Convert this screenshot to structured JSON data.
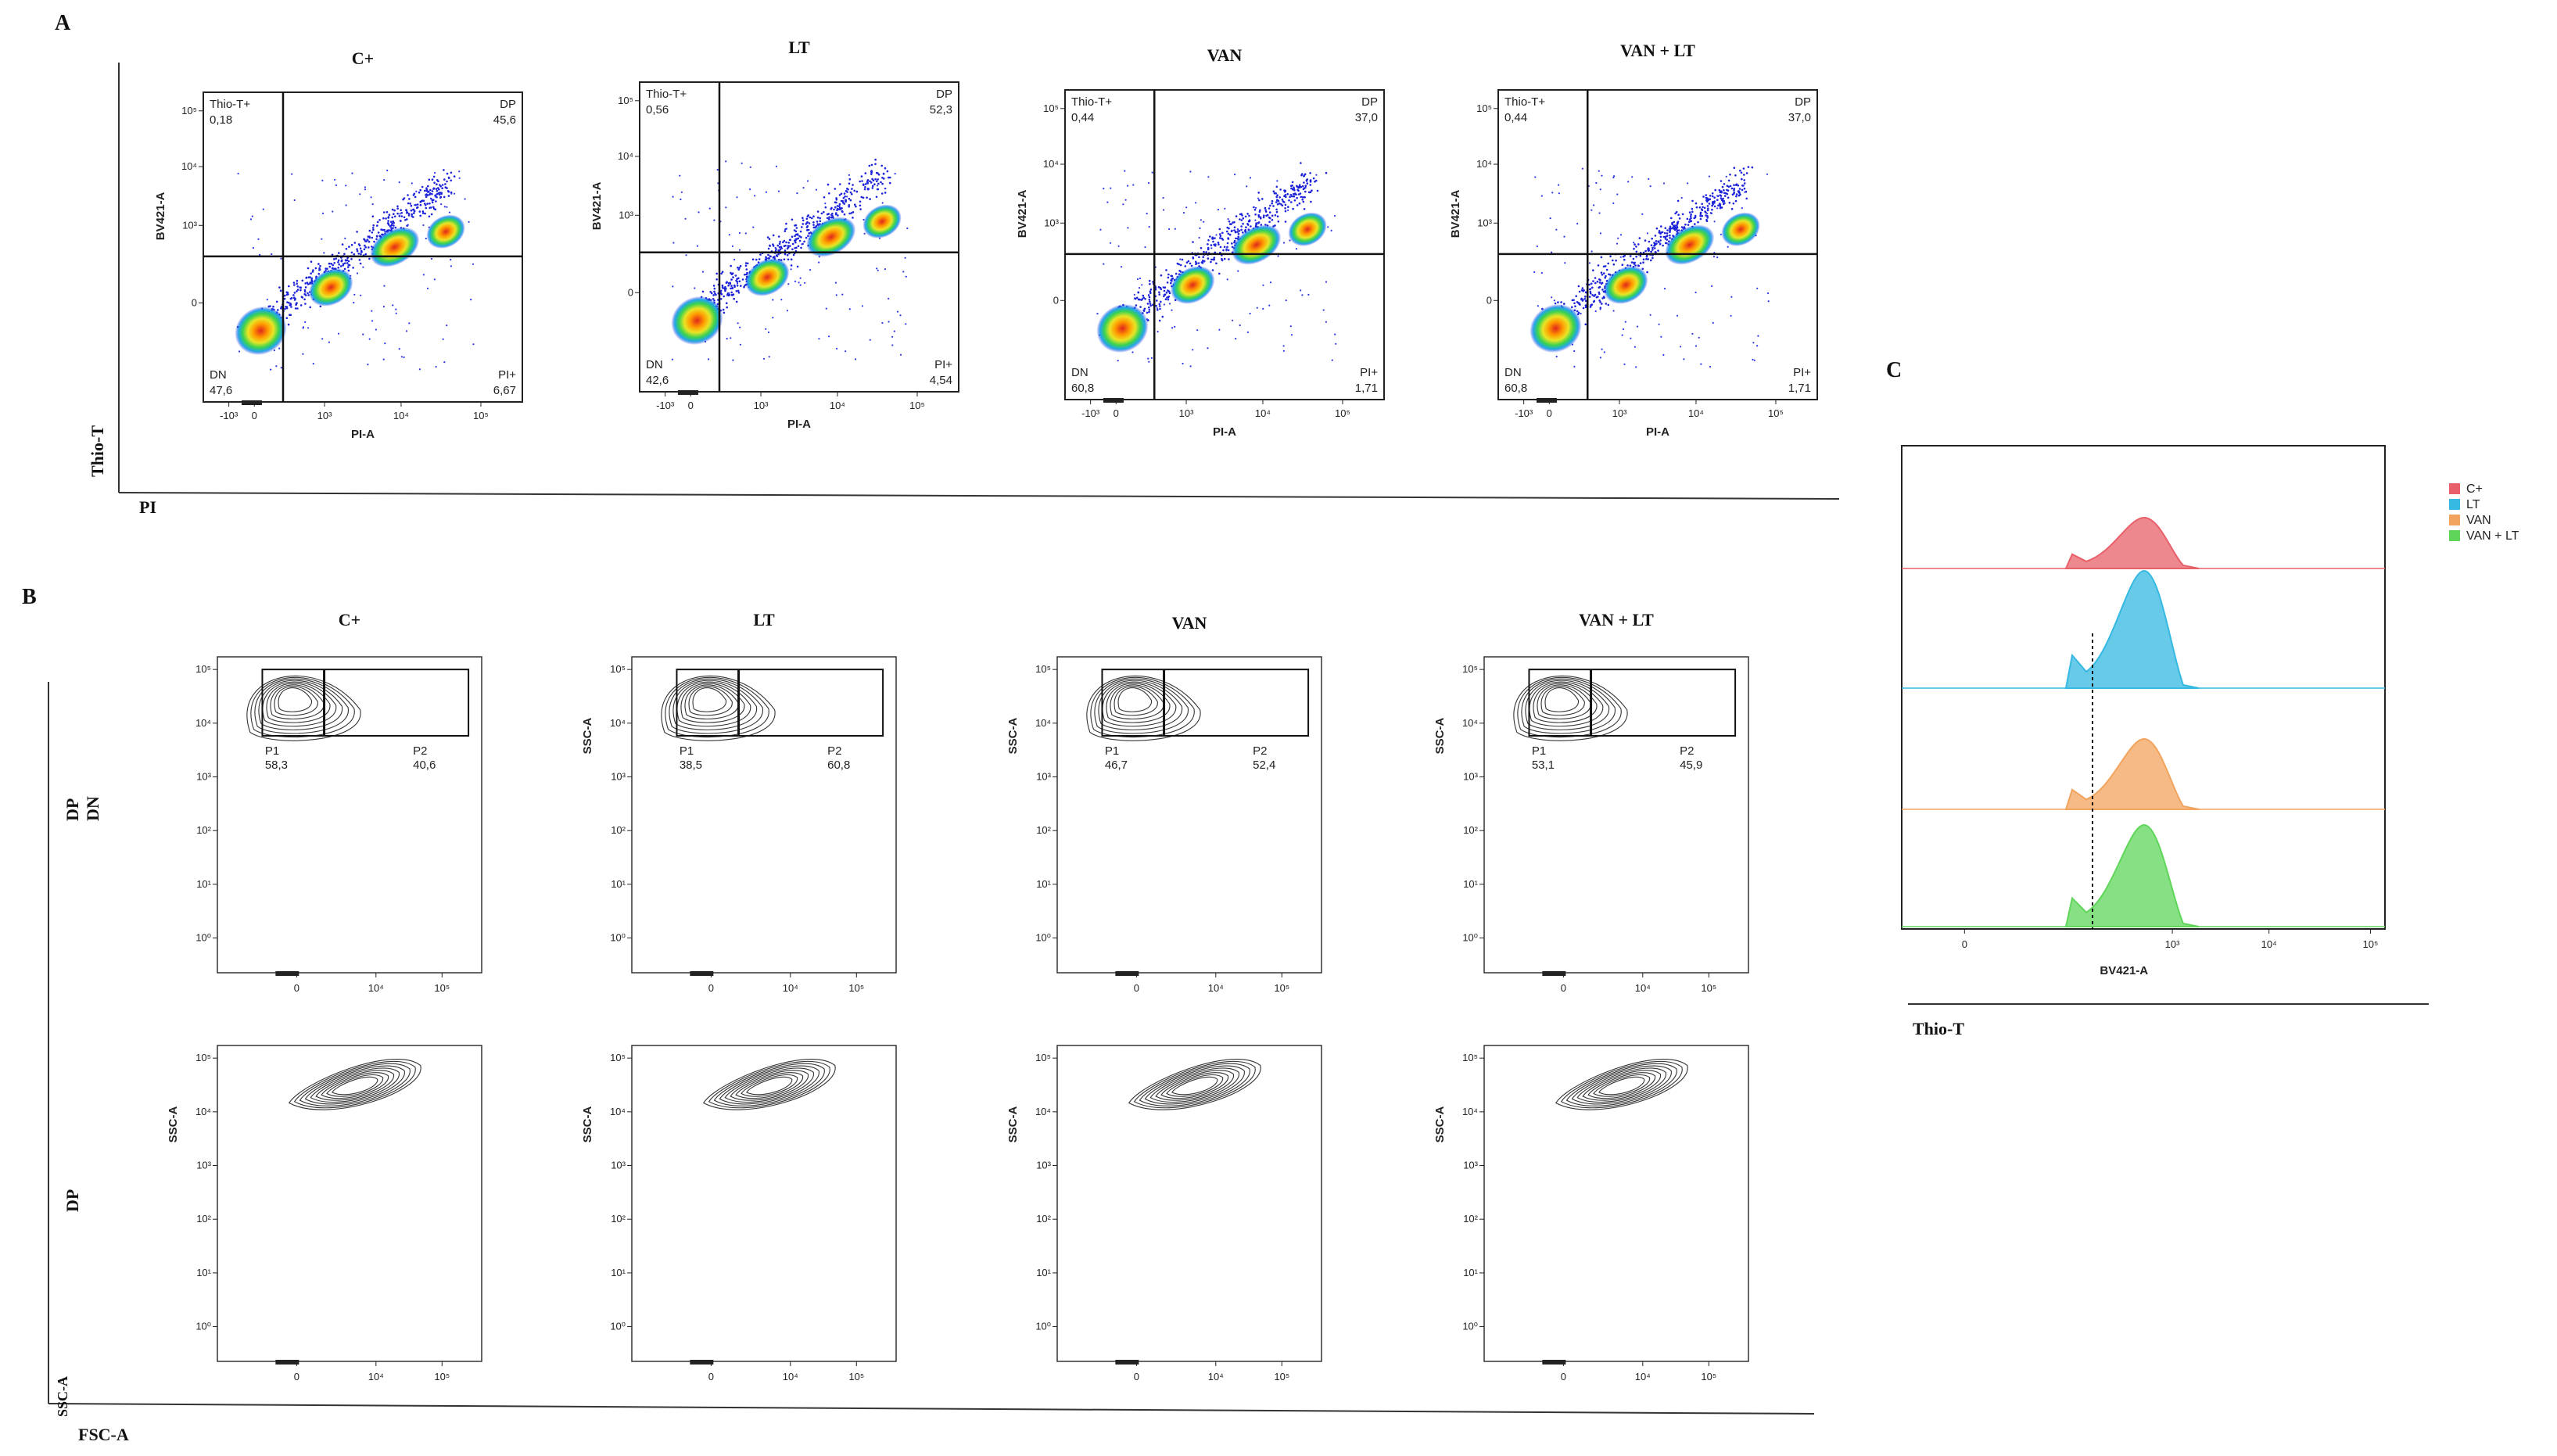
{
  "panel_labels": {
    "a": "A",
    "b": "B",
    "c": "C"
  },
  "panel_a": {
    "side_label": "Thio-T",
    "bottom_label": "PI",
    "x_axis_label": "PI-A",
    "y_axis_label": "BV421-A",
    "x_ticks": [
      "-10³",
      "0",
      "10³",
      "10⁴",
      "10⁵"
    ],
    "y_ticks": [
      "10⁵",
      "10⁴",
      "10³",
      "0"
    ],
    "quadrant_names": {
      "ul": "Thio-T+",
      "ur": "DP",
      "ll": "DN",
      "lr": "PI+"
    }
  },
  "panel_b": {
    "row1_side_labels": [
      "DP",
      "DN"
    ],
    "row2_side_label": "DP",
    "bottom_side_label": "SSC-A",
    "bottom_label": "FSC-A",
    "y_axis_label": "SSC-A",
    "x_ticks": [
      "0",
      "10⁴",
      "10⁵"
    ],
    "y_ticks": [
      "10⁵",
      "10⁴",
      "10³",
      "10²",
      "10¹",
      "10⁰"
    ],
    "gate_names": [
      "P1",
      "P2"
    ]
  },
  "panel_c": {
    "x_axis_label": "BV421-A",
    "bottom_label": "Thio-T",
    "x_ticks": [
      "0",
      "10³",
      "10⁴",
      "10⁵"
    ]
  },
  "chart_data": [
    {
      "panel": "A",
      "type": "scatter",
      "xlabel": "PI-A",
      "ylabel": "BV421-A",
      "scale": "biexponential",
      "samples": [
        {
          "name": "C+",
          "quadrants": {
            "Thio-T+": "0,18",
            "DP": "45,6",
            "DN": "47,6",
            "PI+": "6,67"
          }
        },
        {
          "name": "LT",
          "quadrants": {
            "Thio-T+": "0,56",
            "DP": "52,3",
            "DN": "42,6",
            "PI+": "4,54"
          }
        },
        {
          "name": "VAN",
          "quadrants": {
            "Thio-T+": "0,44",
            "DP": "37,0",
            "DN": "60,8",
            "PI+": "1,71"
          }
        },
        {
          "name": "VAN + LT",
          "quadrants": {
            "Thio-T+": "0,44",
            "DP": "37,0",
            "DN": "60,8",
            "PI+": "1,71"
          }
        }
      ]
    },
    {
      "panel": "B",
      "type": "scatter",
      "subtype": "contour",
      "xlabel": "",
      "ylabel": "SSC-A",
      "samples": [
        {
          "name": "C+",
          "gates": {
            "P1": "58,3",
            "P2": "40,6"
          }
        },
        {
          "name": "LT",
          "gates": {
            "P1": "38,5",
            "P2": "60,8"
          }
        },
        {
          "name": "VAN",
          "gates": {
            "P1": "46,7",
            "P2": "52,4"
          }
        },
        {
          "name": "VAN + LT",
          "gates": {
            "P1": "53,1",
            "P2": "45,9"
          }
        }
      ]
    },
    {
      "panel": "C",
      "type": "area",
      "subtype": "histogram overlay",
      "xlabel": "BV421-A",
      "series": [
        {
          "name": "C+",
          "color": "#e8606a"
        },
        {
          "name": "LT",
          "color": "#35b8e2"
        },
        {
          "name": "VAN",
          "color": "#f2a35e"
        },
        {
          "name": "VAN + LT",
          "color": "#5fd65a"
        }
      ],
      "legend": "top-right"
    }
  ]
}
